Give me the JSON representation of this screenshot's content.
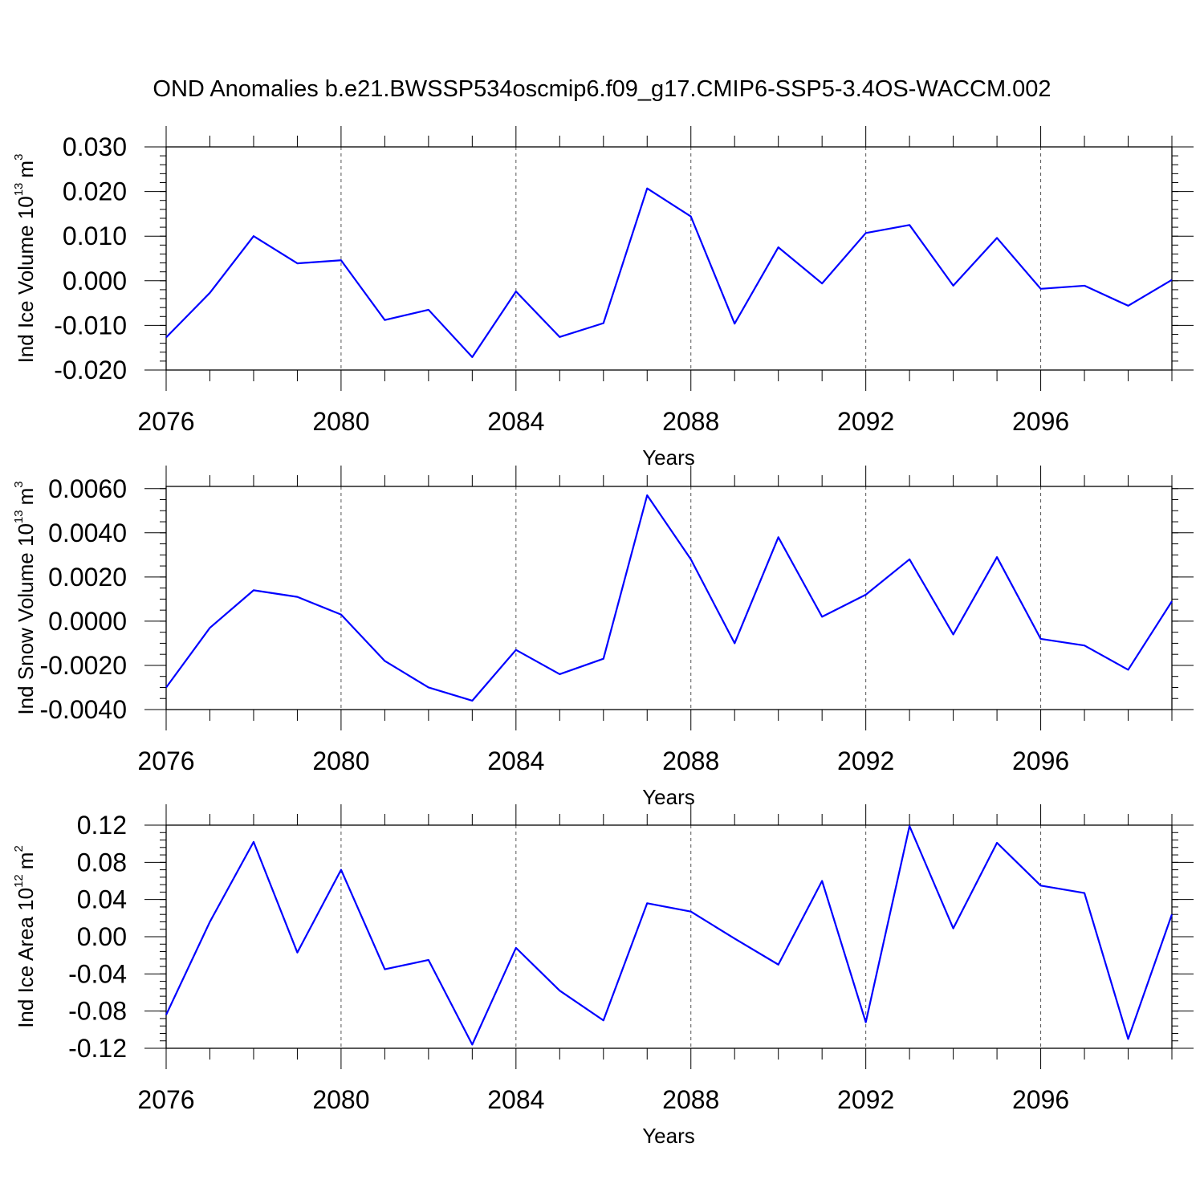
{
  "chart_data": {
    "title": "OND Anomalies b.e21.BWSSP534oscmip6.f09_g17.CMIP6-SSP5-3.4OS-WACCM.002",
    "x": [
      2076,
      2077,
      2078,
      2079,
      2080,
      2081,
      2082,
      2083,
      2084,
      2085,
      2086,
      2087,
      2088,
      2089,
      2090,
      2091,
      2092,
      2093,
      2094,
      2095,
      2096,
      2097,
      2098,
      2099
    ],
    "xlim": [
      2076,
      2099
    ],
    "xticks": [
      "2076",
      "2080",
      "2084",
      "2088",
      "2092",
      "2096"
    ],
    "xlabel": "Years",
    "line_color": "#0000ff",
    "panels": [
      {
        "type": "line",
        "ylabel": "Ind Ice Volume 10",
        "ylabel_exp": "13",
        "ylabel_unit": "m",
        "ylabel_unit_exp": "3",
        "ylim": [
          -0.02,
          0.03
        ],
        "yticks": [
          -0.02,
          -0.01,
          0.0,
          0.01,
          0.02,
          0.03
        ],
        "yticklabels": [
          "-0.020",
          "-0.010",
          "0.000",
          "0.010",
          "0.020",
          "0.030"
        ],
        "yminor": 0.002,
        "values": [
          -0.0127,
          -0.0027,
          0.01,
          0.0039,
          0.0046,
          -0.0088,
          -0.0065,
          -0.0171,
          -0.0024,
          -0.0126,
          -0.0095,
          0.0207,
          0.0144,
          -0.0096,
          0.0075,
          -0.0006,
          0.0107,
          0.0125,
          -0.0011,
          0.0096,
          -0.0018,
          -0.0011,
          -0.0056,
          0.0002
        ]
      },
      {
        "type": "line",
        "ylabel": "Ind Snow Volume 10",
        "ylabel_exp": "13",
        "ylabel_unit": "m",
        "ylabel_unit_exp": "3",
        "ylim": [
          -0.004,
          0.006
        ],
        "yticks": [
          -0.004,
          -0.002,
          0.0,
          0.002,
          0.004,
          0.006
        ],
        "yticklabels": [
          "-0.0040",
          "-0.0020",
          "0.0000",
          "0.0020",
          "0.0040",
          "0.0060"
        ],
        "yminor": 0.0005,
        "ymax_frame": 0.0061,
        "values": [
          -0.003,
          -0.0003,
          0.0014,
          0.0011,
          0.0003,
          -0.0018,
          -0.003,
          -0.0036,
          -0.0013,
          -0.0024,
          -0.0017,
          0.0057,
          0.0028,
          -0.001,
          0.0038,
          0.0002,
          0.0012,
          0.0028,
          -0.0006,
          0.0029,
          -0.0008,
          -0.0011,
          -0.0022,
          0.0009
        ]
      },
      {
        "type": "line",
        "ylabel": "Ind Ice Area 10",
        "ylabel_exp": "12",
        "ylabel_unit": "m",
        "ylabel_unit_exp": "2",
        "ylim": [
          -0.12,
          0.12
        ],
        "yticks": [
          -0.12,
          -0.08,
          -0.04,
          0.0,
          0.04,
          0.08,
          0.12
        ],
        "yticklabels": [
          "-0.12",
          "-0.08",
          "-0.04",
          "0.00",
          "0.04",
          "0.08",
          "0.12"
        ],
        "yminor": 0.008,
        "values": [
          -0.084,
          0.016,
          0.102,
          -0.017,
          0.072,
          -0.035,
          -0.025,
          -0.116,
          -0.012,
          -0.058,
          -0.09,
          0.036,
          0.027,
          -0.002,
          -0.03,
          0.06,
          -0.092,
          0.119,
          0.009,
          0.101,
          0.055,
          0.047,
          -0.11,
          0.024
        ]
      }
    ]
  }
}
